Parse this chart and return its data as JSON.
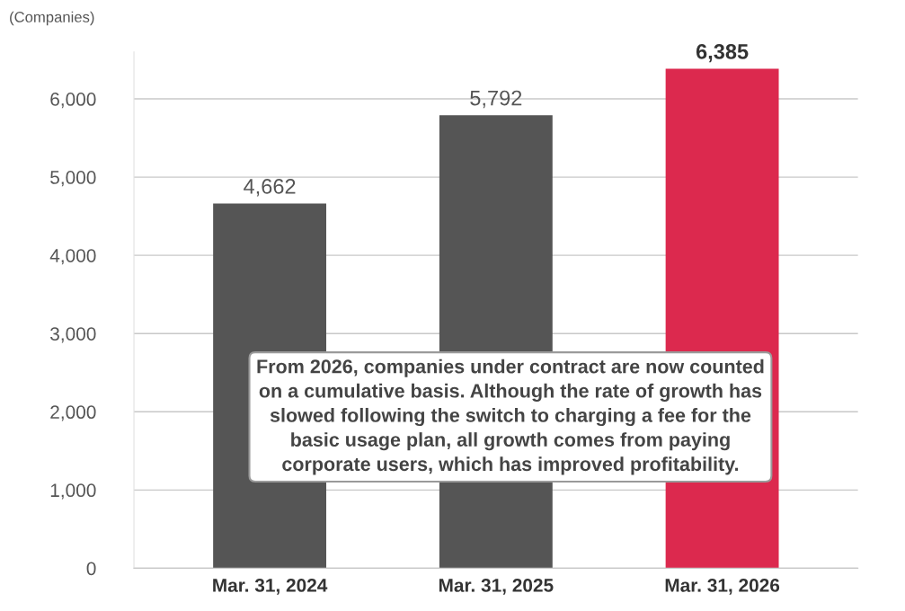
{
  "chart_data": {
    "type": "bar",
    "ylabel": "(Companies)",
    "categories": [
      "Mar. 31, 2024",
      "Mar. 31, 2025",
      "Mar. 31, 2026"
    ],
    "values": [
      4662,
      5792,
      6385
    ],
    "colors": [
      "#555555",
      "#555555",
      "#dc294e"
    ],
    "ylim": [
      0,
      6600
    ],
    "yticks": [
      0,
      {
        "value": 1000,
        "label": "1,000"
      },
      {
        "value": 2000,
        "label": "2,000"
      },
      {
        "value": 3000,
        "label": "3,000"
      },
      {
        "value": 4000,
        "label": "4,000"
      },
      {
        "value": 5000,
        "label": "5,000"
      },
      {
        "value": 6000,
        "label": "6,000"
      }
    ],
    "value_labels": [
      "4,662",
      "5,792",
      "6,385"
    ],
    "grid": "y",
    "annotations": [
      "From 2026, companies under contract are now counted\non a cumulative basis. Although the rate of growth has\nslowed following the switch to charging a fee for the\nbasic usage plan, all growth comes from paying\ncorporate users, which has improved profitability."
    ]
  }
}
